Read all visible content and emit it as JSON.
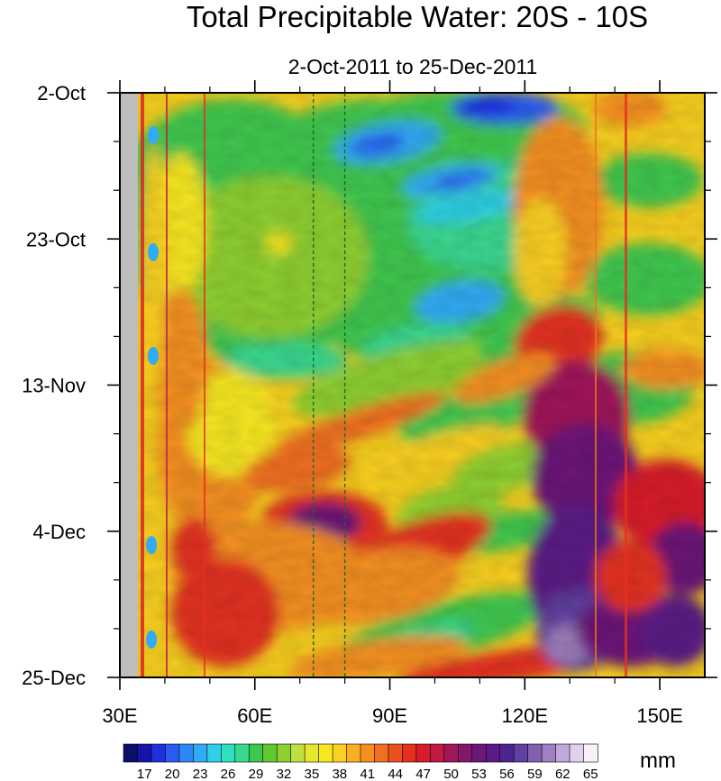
{
  "chart_data": {
    "type": "heatmap",
    "title": "Total Precipitable Water: 20S - 10S",
    "subtitle": "2-Oct-2011 to 25-Dec-2011",
    "xlabel": "",
    "ylabel": "",
    "x_range": [
      "30E",
      "160E"
    ],
    "y_range": [
      "2-Oct",
      "25-Dec"
    ],
    "x_tick_labels": [
      "30E",
      "60E",
      "90E",
      "120E",
      "150E"
    ],
    "x_tick_values": [
      30,
      60,
      90,
      120,
      150
    ],
    "y_tick_labels": [
      "2-Oct",
      "23-Oct",
      "13-Nov",
      "4-Dec",
      "25-Dec"
    ],
    "y_tick_days": [
      0,
      21,
      42,
      63,
      84
    ],
    "colorbar": {
      "unit": "mm",
      "levels": [
        "17",
        "20",
        "23",
        "26",
        "29",
        "32",
        "35",
        "38",
        "41",
        "44",
        "47",
        "50",
        "53",
        "56",
        "59",
        "62",
        "65"
      ],
      "colors": [
        "#0d0d6b",
        "#1414a8",
        "#1f2fe0",
        "#2a5cf0",
        "#2f86f5",
        "#33aaf5",
        "#2fd0e8",
        "#2fe0c0",
        "#3ad890",
        "#3fc850",
        "#60c830",
        "#8fd030",
        "#c0e040",
        "#e6e830",
        "#f8e820",
        "#fbd020",
        "#f8b020",
        "#f59020",
        "#f07020",
        "#ea5020",
        "#e33020",
        "#d81a2a",
        "#c01a45",
        "#a0185a",
        "#84186c",
        "#6c1878",
        "#5c1a86",
        "#4e2490",
        "#6040a0",
        "#8060b0",
        "#a080c0",
        "#c0a8d8",
        "#e0d0ec",
        "#f8f0fa"
      ]
    },
    "vertical_reference_lines": [
      "73E",
      "80E"
    ],
    "grid": false,
    "land_mask_color": "#bdbdbd"
  }
}
